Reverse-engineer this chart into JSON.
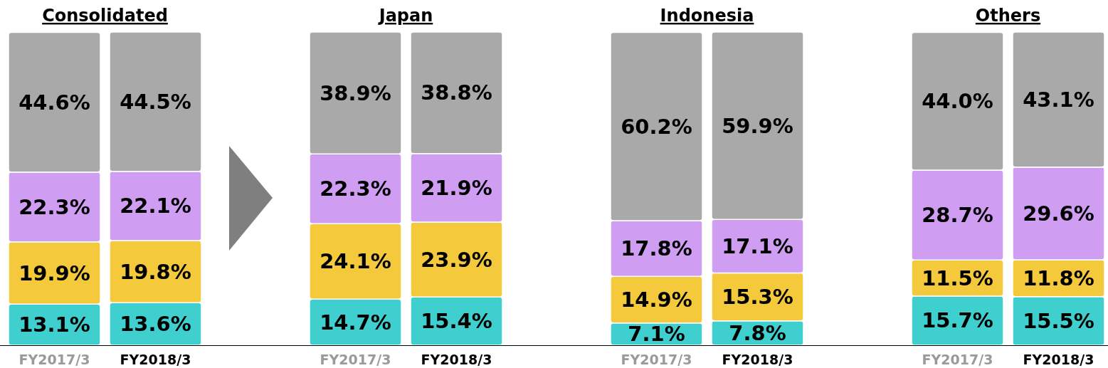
{
  "chart_data": [
    {
      "type": "bar",
      "title": "Consolidated",
      "stacked": true,
      "categories": [
        "FY2017/3",
        "FY2018/3"
      ],
      "series": [
        {
          "color": "#3fcfcf",
          "values": [
            13.1,
            13.6
          ],
          "value_labels": [
            "13.1%",
            "13.6%"
          ]
        },
        {
          "color": "#f4c93c",
          "values": [
            19.9,
            19.8
          ],
          "value_labels": [
            "19.9%",
            "19.8%"
          ]
        },
        {
          "color": "#cf9df2",
          "values": [
            22.3,
            22.1
          ],
          "value_labels": [
            "22.3%",
            "22.1%"
          ]
        },
        {
          "color": "#a9a9a9",
          "values": [
            44.6,
            44.5
          ],
          "value_labels": [
            "44.6%",
            "44.5%"
          ]
        }
      ]
    },
    {
      "type": "bar",
      "title": "Japan",
      "stacked": true,
      "categories": [
        "FY2017/3",
        "FY2018/3"
      ],
      "series": [
        {
          "color": "#3fcfcf",
          "values": [
            14.7,
            15.4
          ],
          "value_labels": [
            "14.7%",
            "15.4%"
          ]
        },
        {
          "color": "#f4c93c",
          "values": [
            24.1,
            23.9
          ],
          "value_labels": [
            "24.1%",
            "23.9%"
          ]
        },
        {
          "color": "#cf9df2",
          "values": [
            22.3,
            21.9
          ],
          "value_labels": [
            "22.3%",
            "21.9%"
          ]
        },
        {
          "color": "#a9a9a9",
          "values": [
            38.9,
            38.8
          ],
          "value_labels": [
            "38.9%",
            "38.8%"
          ]
        }
      ]
    },
    {
      "type": "bar",
      "title": "Indonesia",
      "stacked": true,
      "categories": [
        "FY2017/3",
        "FY2018/3"
      ],
      "series": [
        {
          "color": "#3fcfcf",
          "values": [
            7.1,
            7.8
          ],
          "value_labels": [
            "7.1%",
            "7.8%"
          ]
        },
        {
          "color": "#f4c93c",
          "values": [
            14.9,
            15.3
          ],
          "value_labels": [
            "14.9%",
            "15.3%"
          ]
        },
        {
          "color": "#cf9df2",
          "values": [
            17.8,
            17.1
          ],
          "value_labels": [
            "17.8%",
            "17.1%"
          ]
        },
        {
          "color": "#a9a9a9",
          "values": [
            60.2,
            59.9
          ],
          "value_labels": [
            "60.2%",
            "59.9%"
          ]
        }
      ]
    },
    {
      "type": "bar",
      "title": "Others",
      "stacked": true,
      "categories": [
        "FY2017/3",
        "FY2018/3"
      ],
      "series": [
        {
          "color": "#3fcfcf",
          "values": [
            15.7,
            15.5
          ],
          "value_labels": [
            "15.7%",
            "15.5%"
          ]
        },
        {
          "color": "#f4c93c",
          "values": [
            11.5,
            11.8
          ],
          "value_labels": [
            "11.5%",
            "11.8%"
          ]
        },
        {
          "color": "#cf9df2",
          "values": [
            28.7,
            29.6
          ],
          "value_labels": [
            "28.7%",
            "29.6%"
          ]
        },
        {
          "color": "#a9a9a9",
          "values": [
            44.0,
            43.1
          ],
          "value_labels": [
            "44.0%",
            "43.1%"
          ]
        }
      ]
    }
  ]
}
